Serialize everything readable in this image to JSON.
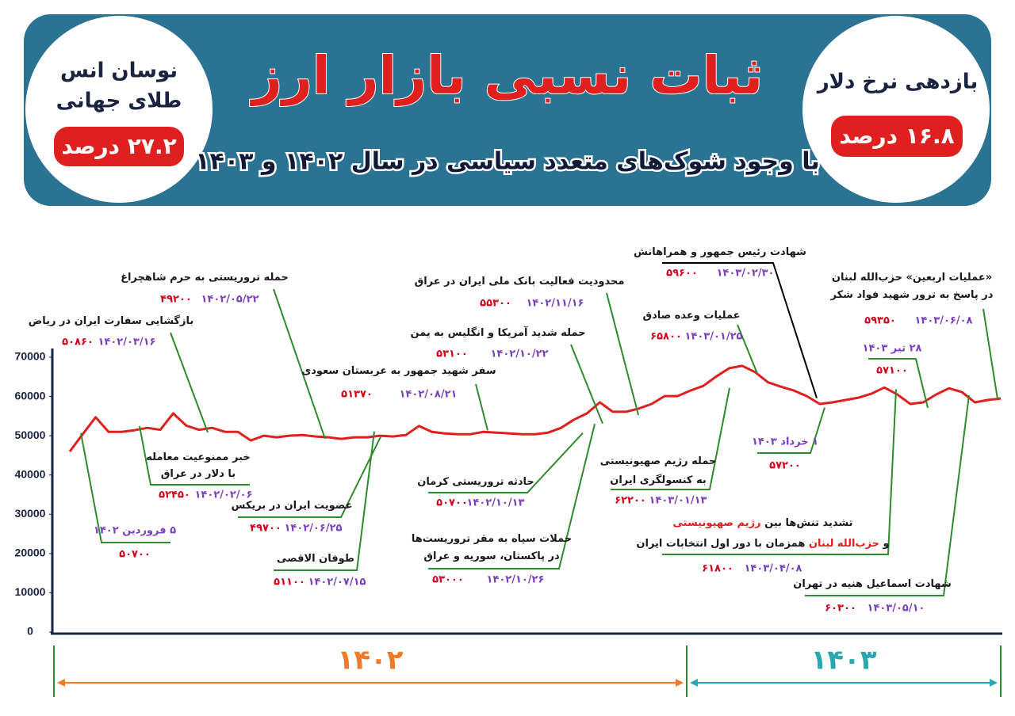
{
  "header": {
    "title": "ثبات نسبی بازار ارز",
    "subtitle": "با وجود شوک‌های متعدد سیاسی در سال ۱۴۰۲ و ۱۴۰۳",
    "left": {
      "lines": [
        "نوسان انس",
        "طلای جهانی"
      ],
      "badge": "۲۷.۲ درصد"
    },
    "right": {
      "lines": [
        "بازدهی نرخ دلار"
      ],
      "badge": "۱۶.۸ درصد"
    }
  },
  "chart_data": {
    "type": "line",
    "series": [
      {
        "color": "#e0201f",
        "values": [
          46000,
          50400,
          54700,
          51000,
          51000,
          51400,
          52000,
          51500,
          55700,
          52600,
          51500,
          52000,
          51000,
          51000,
          48800,
          50000,
          49600,
          50000,
          50200,
          49800,
          49600,
          49200,
          49600,
          49600,
          50000,
          49800,
          50200,
          52500,
          51000,
          50600,
          50400,
          50400,
          51000,
          50800,
          50600,
          50400,
          50400,
          50800,
          52000,
          54100,
          55700,
          58500,
          56100,
          56100,
          56900,
          58100,
          60100,
          60100,
          61500,
          62700,
          65100,
          67200,
          67800,
          66200,
          63600,
          62500,
          61500,
          60100,
          58100,
          58500,
          59100,
          59700,
          60700,
          62300,
          60500,
          58100,
          58500,
          60500,
          62100,
          61100,
          58500,
          59100,
          59500
        ]
      }
    ],
    "ylim": [
      0,
      70000
    ],
    "yticks": [
      0,
      10000,
      20000,
      30000,
      40000,
      50000,
      60000,
      70000
    ],
    "annotations": [
      {
        "lines": [
          [
            "بازگشایی سفارت ایران در ریاض"
          ]
        ],
        "value": 50860,
        "value_label": "۵۰۸۶۰",
        "date": "۱۴۰۲/۰۳/۱۶"
      },
      {
        "lines": [
          [
            "حمله تروریستی به حرم شاهچراغ"
          ]
        ],
        "value": 49200,
        "value_label": "۴۹۲۰۰",
        "date": "۱۴۰۲/۰۵/۲۲"
      },
      {
        "lines": [
          [
            "خبر ممنوعیت معامله"
          ],
          [
            "با دلار در عراق"
          ]
        ],
        "value": 52450,
        "value_label": "۵۲۴۵۰",
        "date": "۱۴۰۲/۰۲/۰۶"
      },
      {
        "value": 50700,
        "value_label": "۵۰۷۰۰",
        "date": "۵ فروردین ۱۴۰۲"
      },
      {
        "lines": [
          [
            "عضویت ایران در بریکس"
          ]
        ],
        "value": 49700,
        "value_label": "۴۹۷۰۰",
        "date": "۱۴۰۲/۰۶/۲۵"
      },
      {
        "lines": [
          [
            "طوفان الاقصی"
          ]
        ],
        "value": 51100,
        "value_label": "۵۱۱۰۰",
        "date": "۱۴۰۲/۰۷/۱۵"
      },
      {
        "lines": [
          [
            "سفر شهید جمهور به عربستان سعودی"
          ]
        ],
        "value": 51370,
        "value_label": "۵۱۳۷۰",
        "date": "۱۴۰۲/۰۸/۲۱"
      },
      {
        "lines": [
          [
            "حمله شدید آمریکا و انگلیس به یمن"
          ]
        ],
        "value": 53100,
        "value_label": "۵۳۱۰۰",
        "date": "۱۴۰۲/۱۰/۲۲"
      },
      {
        "lines": [
          [
            "محدودیت فعالیت بانک ملی ایران در عراق"
          ]
        ],
        "value": 55300,
        "value_label": "۵۵۳۰۰",
        "date": "۱۴۰۲/۱۱/۱۶"
      },
      {
        "lines": [
          [
            "حادثه تروریستی کرمان"
          ]
        ],
        "value": 50700,
        "value_label": "۵۰۷۰۰",
        "date": "۱۴۰۲/۱۰/۱۳"
      },
      {
        "lines": [
          [
            "حملات سپاه به مقر تروریست‌ها"
          ],
          [
            "در پاکستان، سوریه و عراق"
          ]
        ],
        "value": 53000,
        "value_label": "۵۳۰۰۰",
        "date": "۱۴۰۲/۱۰/۲۶"
      },
      {
        "lines": [
          [
            "شهادت رئیس جمهور و همراهانش"
          ]
        ],
        "value": 59600,
        "value_label": "۵۹۶۰۰",
        "date": "۱۴۰۳/۰۲/۳۰"
      },
      {
        "lines": [
          [
            "عملیات وعده صادق"
          ]
        ],
        "value": 65800,
        "value_label": "۶۵۸۰۰",
        "date": "۱۴۰۳/۰۱/۲۵"
      },
      {
        "lines": [
          [
            "حمله رژیم صهیونیستی"
          ],
          [
            "به کنسولگری ایران"
          ]
        ],
        "value": 62200,
        "value_label": "۶۲۲۰۰",
        "date": "۱۴۰۳/۰۱/۱۳"
      },
      {
        "value": 57200,
        "value_label": "۵۷۲۰۰",
        "date": "۱ خرداد ۱۴۰۳"
      },
      {
        "lines": [
          [
            "تشدید تنش‌ها بین",
            "رژیم صهیونیستی"
          ],
          [
            "و",
            "حزب‌الله لبنان",
            "همزمان با دور اول انتخابات ایران"
          ]
        ],
        "value": 61800,
        "value_label": "۶۱۸۰۰",
        "date": "۱۴۰۳/۰۴/۰۸"
      },
      {
        "value": 57100,
        "value_label": "۵۷۱۰۰",
        "date": "۲۸ تیر ۱۴۰۳"
      },
      {
        "lines": [
          [
            "«عملیات اربعین» حزب‌الله لبنان"
          ],
          [
            "در پاسخ به ترور شهید فواد شکر"
          ]
        ],
        "value": 59350,
        "value_label": "۵۹۳۵۰",
        "date": "۱۴۰۳/۰۶/۰۸"
      },
      {
        "lines": [
          [
            "شهادت اسماعیل هنیه در تهران"
          ]
        ],
        "value": 60300,
        "value_label": "۶۰۳۰۰",
        "date": "۱۴۰۳/۰۵/۱۰"
      }
    ],
    "periods": [
      {
        "label": "۱۴۰۲",
        "color": "#f07a2a"
      },
      {
        "label": "۱۴۰۳",
        "color": "#2aa8b0"
      }
    ]
  }
}
